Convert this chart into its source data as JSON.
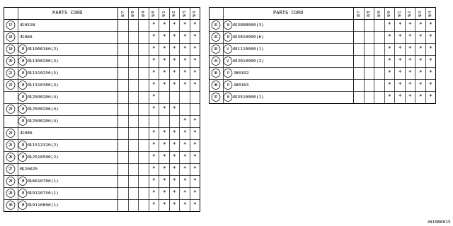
{
  "bg_color": "#ffffff",
  "col_headers": [
    "8/7",
    "8/8",
    "8/9",
    "9/0",
    "9/1",
    "9/2",
    "9/3",
    "9/4"
  ],
  "left_table": {
    "title": "PARTS CORD",
    "rows": [
      {
        "num": "17",
        "part": "41031N",
        "prefix": "",
        "marks": [
          0,
          0,
          0,
          1,
          1,
          1,
          1,
          1
        ]
      },
      {
        "num": "18",
        "part": "41066",
        "prefix": "",
        "marks": [
          0,
          0,
          0,
          1,
          1,
          1,
          1,
          1
        ]
      },
      {
        "num": "19",
        "part": "011008160(2)",
        "prefix": "B",
        "marks": [
          0,
          0,
          0,
          1,
          1,
          1,
          1,
          1
        ]
      },
      {
        "num": "20",
        "part": "011308200(3)",
        "prefix": "B",
        "marks": [
          0,
          0,
          0,
          1,
          1,
          1,
          1,
          1
        ]
      },
      {
        "num": "21",
        "part": "011310250(5)",
        "prefix": "B",
        "marks": [
          0,
          0,
          0,
          1,
          1,
          1,
          1,
          1
        ]
      },
      {
        "num": "22",
        "part": "011310300(3)",
        "prefix": "B",
        "marks": [
          0,
          0,
          0,
          1,
          1,
          1,
          1,
          1
        ]
      },
      {
        "num": "",
        "part": "012508200(4)",
        "prefix": "B",
        "marks": [
          0,
          0,
          0,
          1,
          0,
          0,
          0,
          0
        ]
      },
      {
        "num": "23",
        "part": "012508206(4)",
        "prefix": "B",
        "marks": [
          0,
          0,
          0,
          1,
          1,
          1,
          0,
          0
        ]
      },
      {
        "num": "",
        "part": "012508200(4)",
        "prefix": "B",
        "marks": [
          0,
          0,
          0,
          0,
          0,
          0,
          1,
          1
        ]
      },
      {
        "num": "24",
        "part": "41086",
        "prefix": "",
        "marks": [
          0,
          0,
          0,
          1,
          1,
          1,
          1,
          1
        ]
      },
      {
        "num": "25",
        "part": "011512320(2)",
        "prefix": "B",
        "marks": [
          0,
          0,
          0,
          1,
          1,
          1,
          1,
          1
        ]
      },
      {
        "num": "26",
        "part": "012510500(2)",
        "prefix": "B",
        "marks": [
          0,
          0,
          0,
          1,
          1,
          1,
          1,
          1
        ]
      },
      {
        "num": "27",
        "part": "M120025",
        "prefix": "",
        "marks": [
          0,
          0,
          0,
          1,
          1,
          1,
          1,
          1
        ]
      },
      {
        "num": "28",
        "part": "016610700(1)",
        "prefix": "B",
        "marks": [
          0,
          0,
          0,
          1,
          1,
          1,
          1,
          1
        ]
      },
      {
        "num": "29",
        "part": "019110750(1)",
        "prefix": "B",
        "marks": [
          0,
          0,
          0,
          1,
          1,
          1,
          1,
          1
        ]
      },
      {
        "num": "30",
        "part": "019110800(1)",
        "prefix": "B",
        "marks": [
          0,
          0,
          0,
          1,
          1,
          1,
          1,
          1
        ]
      }
    ]
  },
  "right_table": {
    "title": "PARTS CORD",
    "rows": [
      {
        "num": "31",
        "prefix": "N",
        "part": "023808000(3)",
        "marks": [
          0,
          0,
          0,
          1,
          1,
          1,
          1,
          1
        ]
      },
      {
        "num": "32",
        "prefix": "N",
        "part": "023810000(6)",
        "marks": [
          0,
          0,
          0,
          1,
          1,
          1,
          1,
          1
        ]
      },
      {
        "num": "33",
        "prefix": "V",
        "part": "031110000(1)",
        "marks": [
          0,
          0,
          0,
          1,
          1,
          1,
          1,
          1
        ]
      },
      {
        "num": "34",
        "prefix": "V",
        "part": "032010000(2)",
        "marks": [
          0,
          0,
          0,
          1,
          1,
          1,
          1,
          1
        ]
      },
      {
        "num": "35",
        "prefix": "P",
        "part": "100102",
        "marks": [
          0,
          0,
          0,
          1,
          1,
          1,
          1,
          1
        ]
      },
      {
        "num": "36",
        "prefix": "P",
        "part": "100163",
        "marks": [
          0,
          0,
          0,
          1,
          1,
          1,
          1,
          1
        ]
      },
      {
        "num": "37",
        "prefix": "N",
        "part": "023510006(1)",
        "marks": [
          0,
          0,
          0,
          1,
          1,
          1,
          1,
          1
        ]
      }
    ]
  },
  "footnote": "A410B0015"
}
